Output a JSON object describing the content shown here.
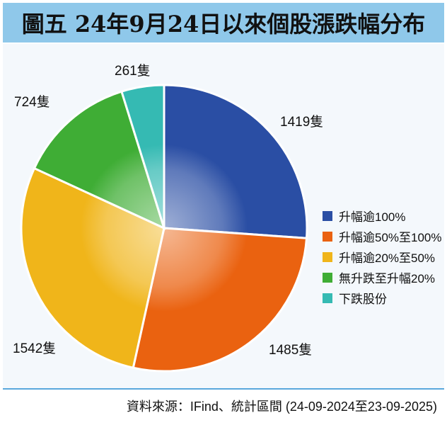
{
  "header": {
    "title": "圖五 24年9月24日以來個股漲跌幅分布"
  },
  "chart_data": {
    "type": "pie",
    "title": "圖五 24年9月24日以來個股漲跌幅分布",
    "legend_position": "right",
    "slices": [
      {
        "name": "升幅逾100%",
        "value": 1419,
        "label": "1419隻",
        "color": "#2a4ea4"
      },
      {
        "name": "升幅逾50%至100%",
        "value": 1485,
        "label": "1485隻",
        "color": "#ea6210"
      },
      {
        "name": "升幅逾20%至50%",
        "value": 1542,
        "label": "1542隻",
        "color": "#f0b51a"
      },
      {
        "name": "無升跌至升幅20%",
        "value": 724,
        "label": "724隻",
        "color": "#3fad35"
      },
      {
        "name": "下跌股份",
        "value": 261,
        "label": "261隻",
        "color": "#35bab3"
      }
    ]
  },
  "footer": {
    "source": "資料來源：IFind、統計區間 (24-09-2024至23-09-2025)"
  }
}
